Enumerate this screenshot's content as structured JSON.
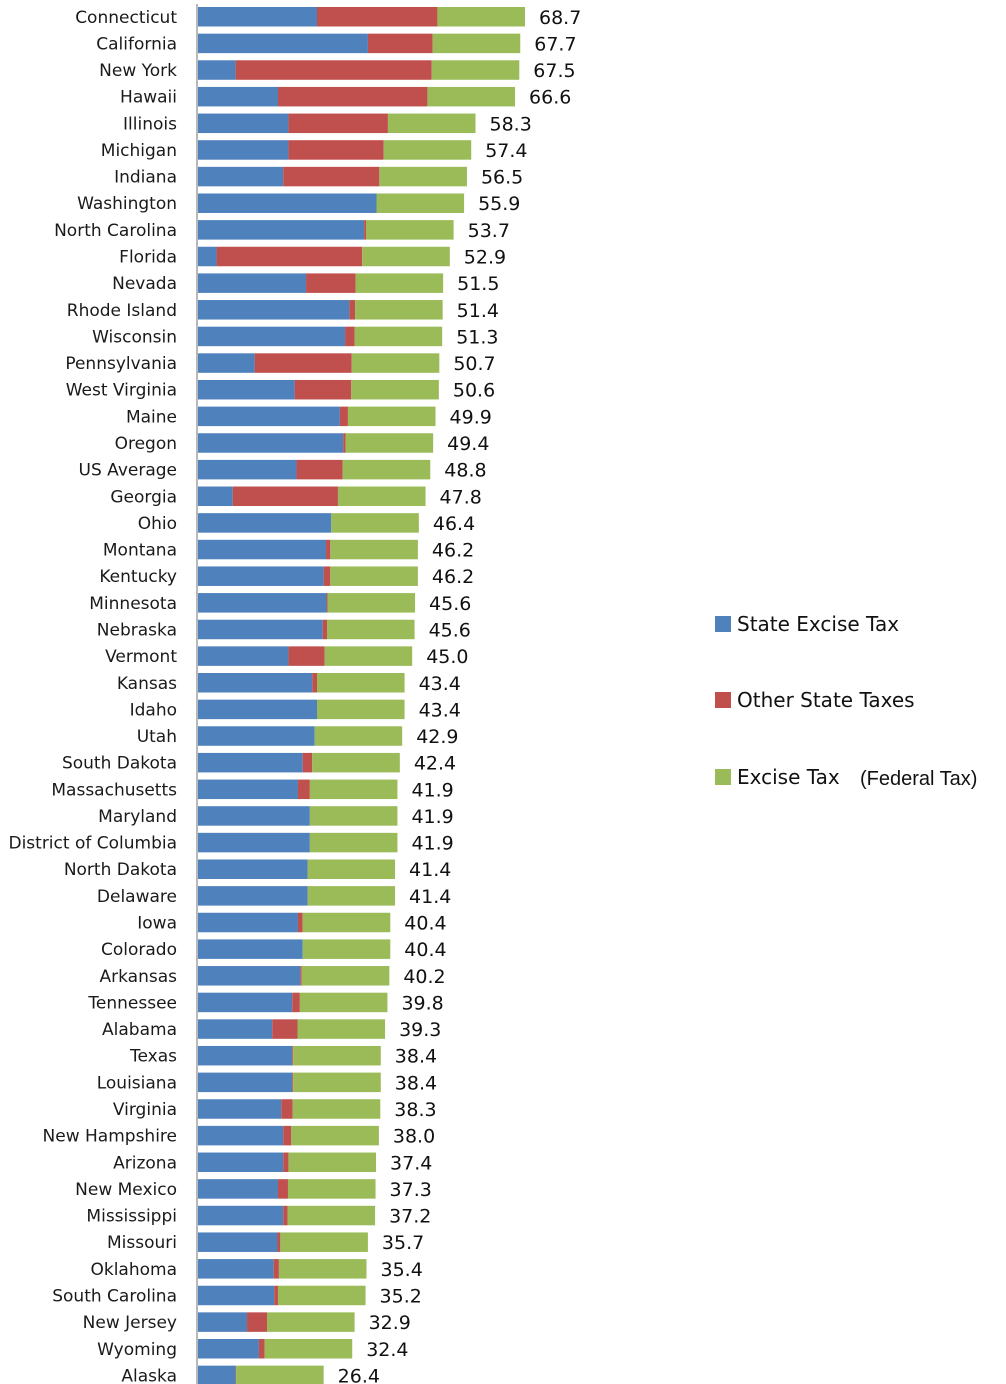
{
  "chart_data": {
    "type": "bar",
    "orientation": "horizontal",
    "stacked": true,
    "categories": [
      "Connecticut",
      "California",
      "New York",
      "Hawaii",
      "Illinois",
      "Michigan",
      "Indiana",
      "Washington",
      "North Carolina",
      "Florida",
      "Nevada",
      "Rhode Island",
      "Wisconsin",
      "Pennsylvania",
      "West Virginia",
      "Maine",
      "Oregon",
      "US Average",
      "Georgia",
      "Ohio",
      "Montana",
      "Kentucky",
      "Minnesota",
      "Nebraska",
      "Vermont",
      "Kansas",
      "Idaho",
      "Utah",
      "South Dakota",
      "Massachusetts",
      "Maryland",
      "District of Columbia",
      "North Dakota",
      "Delaware",
      "Iowa",
      "Colorado",
      "Arkansas",
      "Tennessee",
      "Alabama",
      "Texas",
      "Louisiana",
      "Virginia",
      "New Hampshire",
      "Arizona",
      "New Mexico",
      "Mississippi",
      "Missouri",
      "Oklahoma",
      "South Carolina",
      "New Jersey",
      "Wyoming",
      "Alaska"
    ],
    "totals": [
      "68.7",
      "67.7",
      "67.5",
      "66.6",
      "58.3",
      "57.4",
      "56.5",
      "55.9",
      "53.7",
      "52.9",
      "51.5",
      "51.4",
      "51.3",
      "50.7",
      "50.6",
      "49.9",
      "49.4",
      "48.8",
      "47.8",
      "46.4",
      "46.2",
      "46.2",
      "45.6",
      "45.6",
      "45.0",
      "43.4",
      "43.4",
      "42.9",
      "42.4",
      "41.9",
      "41.9",
      "41.9",
      "41.4",
      "41.4",
      "40.4",
      "40.4",
      "40.2",
      "39.8",
      "39.3",
      "38.4",
      "38.4",
      "38.3",
      "38.0",
      "37.4",
      "37.3",
      "37.2",
      "35.7",
      "35.4",
      "35.2",
      "32.9",
      "32.4",
      "26.4"
    ],
    "series": [
      {
        "name": "State Excise Tax",
        "color": "#4f81bd",
        "values": [
          25.0,
          35.7,
          7.9,
          16.8,
          19.0,
          19.0,
          17.9,
          37.5,
          34.9,
          3.9,
          22.7,
          31.8,
          30.9,
          11.9,
          20.3,
          29.8,
          30.5,
          20.7,
          7.3,
          28.0,
          26.9,
          26.4,
          27.0,
          26.2,
          19.0,
          24.0,
          25.0,
          24.5,
          22.0,
          21.0,
          23.5,
          23.5,
          23.0,
          23.0,
          21.0,
          22.0,
          21.5,
          19.8,
          15.6,
          19.8,
          19.8,
          17.5,
          17.9,
          17.9,
          16.8,
          17.9,
          16.7,
          15.9,
          16.0,
          10.3,
          12.8,
          7.9
        ]
      },
      {
        "name": "Other State Taxes",
        "color": "#c0504d",
        "values": [
          25.3,
          13.6,
          41.2,
          31.4,
          20.9,
          20.0,
          20.2,
          0.0,
          0.4,
          30.6,
          10.4,
          1.2,
          2.0,
          20.4,
          11.9,
          1.7,
          0.5,
          9.7,
          22.1,
          0.0,
          0.9,
          1.4,
          0.2,
          0.9,
          7.6,
          1.0,
          0.0,
          0.0,
          2.0,
          2.5,
          0.0,
          0.0,
          0.0,
          0.0,
          1.0,
          0.0,
          0.3,
          1.6,
          5.3,
          0.2,
          0.2,
          2.4,
          1.7,
          1.1,
          2.1,
          0.9,
          0.6,
          1.1,
          0.8,
          4.2,
          1.2,
          0.1
        ]
      },
      {
        "name": "Excise Tax",
        "color": "#9bbb59",
        "values": [
          18.4,
          18.4,
          18.4,
          18.4,
          18.4,
          18.4,
          18.4,
          18.4,
          18.4,
          18.4,
          18.4,
          18.4,
          18.4,
          18.4,
          18.4,
          18.4,
          18.4,
          18.4,
          18.4,
          18.4,
          18.4,
          18.4,
          18.4,
          18.4,
          18.4,
          18.4,
          18.4,
          18.4,
          18.4,
          18.4,
          18.4,
          18.4,
          18.4,
          18.4,
          18.4,
          18.4,
          18.4,
          18.4,
          18.4,
          18.4,
          18.4,
          18.4,
          18.4,
          18.4,
          18.4,
          18.4,
          18.4,
          18.4,
          18.4,
          18.4,
          18.4,
          18.4
        ]
      }
    ],
    "xlim": [
      0,
      75
    ],
    "legend": {
      "placement": "right",
      "entries": [
        "State Excise Tax",
        "Other State Taxes",
        "Excise Tax"
      ],
      "note": "(Federal Tax)"
    }
  }
}
